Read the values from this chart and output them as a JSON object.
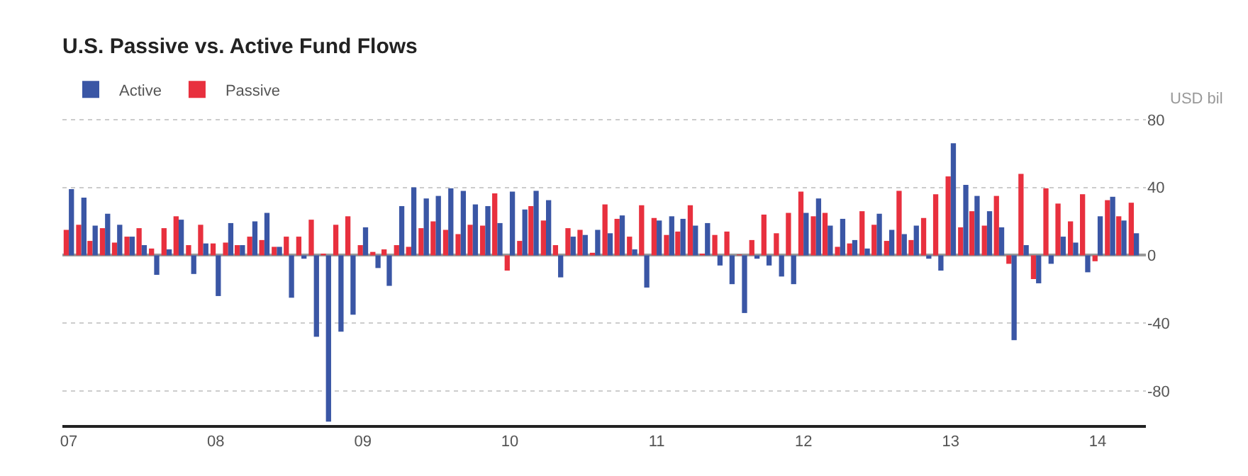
{
  "chart_data": {
    "type": "bar",
    "title": "U.S. Passive vs. Active Fund Flows",
    "ylabel": "USD bil",
    "x": [
      "2007-01",
      "2007-02",
      "2007-03",
      "2007-04",
      "2007-05",
      "2007-06",
      "2007-07",
      "2007-08",
      "2007-09",
      "2007-10",
      "2007-11",
      "2007-12",
      "2008-01",
      "2008-02",
      "2008-03",
      "2008-04",
      "2008-05",
      "2008-06",
      "2008-07",
      "2008-08",
      "2008-09",
      "2008-10",
      "2008-11",
      "2008-12",
      "2009-01",
      "2009-02",
      "2009-03",
      "2009-04",
      "2009-05",
      "2009-06",
      "2009-07",
      "2009-08",
      "2009-09",
      "2009-10",
      "2009-11",
      "2009-12",
      "2010-01",
      "2010-02",
      "2010-03",
      "2010-04",
      "2010-05",
      "2010-06",
      "2010-07",
      "2010-08",
      "2010-09",
      "2010-10",
      "2010-11",
      "2010-12",
      "2011-01",
      "2011-02",
      "2011-03",
      "2011-04",
      "2011-05",
      "2011-06",
      "2011-07",
      "2011-08",
      "2011-09",
      "2011-10",
      "2011-11",
      "2011-12",
      "2012-01",
      "2012-02",
      "2012-03",
      "2012-04",
      "2012-05",
      "2012-06",
      "2012-07",
      "2012-08",
      "2012-09",
      "2012-10",
      "2012-11",
      "2012-12",
      "2013-01",
      "2013-02",
      "2013-03",
      "2013-04",
      "2013-05",
      "2013-06",
      "2013-07",
      "2013-08",
      "2013-09",
      "2013-10",
      "2013-11",
      "2013-12",
      "2014-01",
      "2014-02",
      "2014-03",
      "2014-04"
    ],
    "series": [
      {
        "name": "Active",
        "color": "#3a56a5",
        "values": [
          39,
          34,
          17.5,
          24.5,
          18,
          11,
          6,
          -11.5,
          3.5,
          21,
          -11,
          7,
          -24,
          19,
          6,
          20,
          25,
          5,
          -25,
          -2,
          -48,
          -98,
          -45,
          -35,
          16.5,
          -7.5,
          -18,
          29,
          40,
          33.5,
          35,
          39.5,
          38,
          30,
          29,
          19,
          37.5,
          27,
          38,
          32.5,
          -13,
          11,
          12,
          15,
          13,
          23.5,
          3.5,
          -19,
          20.5,
          23,
          21.5,
          17.5,
          19,
          -6,
          -17,
          -34,
          -2,
          -6,
          -12.5,
          -17,
          25,
          33.5,
          17.5,
          21.5,
          9,
          4,
          24.5,
          15,
          12.5,
          17.5,
          -2,
          -9,
          66,
          41.5,
          35,
          26,
          16.5,
          -50,
          6,
          -16.5,
          -5,
          11,
          7.5,
          -10,
          23,
          34.5,
          20.5,
          13
        ]
      },
      {
        "name": "Passive",
        "color": "#e8303e",
        "values": [
          15,
          18,
          8.5,
          16,
          7.5,
          11,
          16,
          4,
          16,
          23,
          6,
          18,
          7,
          7.5,
          6,
          11,
          9,
          5,
          11,
          11,
          21,
          1,
          18,
          23,
          6,
          2,
          3.5,
          6,
          5,
          16,
          20,
          15,
          12.5,
          18,
          17.5,
          36.5,
          -9,
          8.5,
          29,
          20.5,
          6,
          16,
          15,
          1.5,
          30,
          21.5,
          11,
          29.5,
          22,
          12,
          14,
          29.5,
          1,
          12,
          14,
          0.5,
          9,
          24,
          13,
          25,
          37.5,
          23,
          25,
          5,
          7,
          26,
          18,
          8.5,
          38,
          9,
          22,
          36,
          46.5,
          16.5,
          26,
          17.5,
          35,
          -5,
          48,
          -14,
          39.5,
          30.5,
          20,
          36,
          -3.5,
          32.5,
          23,
          31
        ]
      }
    ],
    "xlim": [
      "2006-12-16",
      "2014-05-01"
    ],
    "xticks": [
      {
        "value": "2007-01",
        "label": "07"
      },
      {
        "value": "2008-01",
        "label": "08"
      },
      {
        "value": "2009-01",
        "label": "09"
      },
      {
        "value": "2010-01",
        "label": "10"
      },
      {
        "value": "2011-01",
        "label": "11"
      },
      {
        "value": "2012-01",
        "label": "12"
      },
      {
        "value": "2013-01",
        "label": "13"
      },
      {
        "value": "2014-01",
        "label": "14"
      }
    ],
    "ylim": [
      -100,
      82
    ],
    "yticks": [
      -80,
      -40,
      0,
      40,
      80
    ],
    "grid": "y",
    "legend": "top left"
  }
}
